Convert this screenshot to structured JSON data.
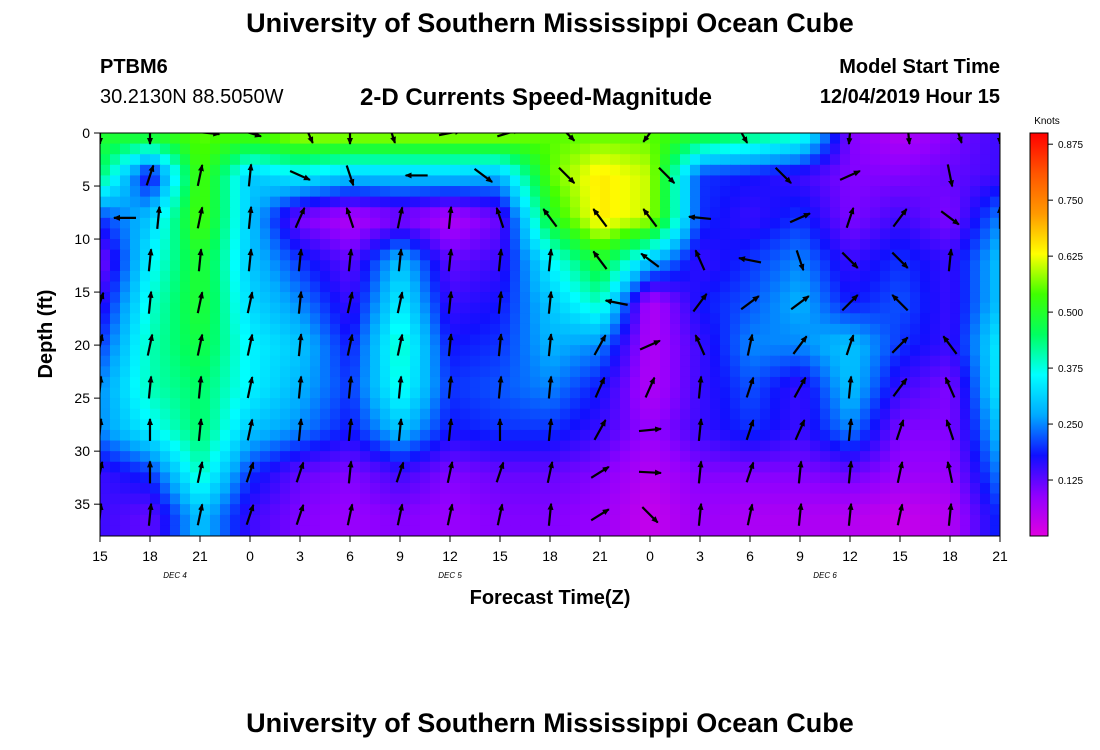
{
  "header": {
    "title": "University of Southern Mississippi Ocean Cube",
    "station_id": "PTBM6",
    "coordinates": "30.2130N 88.5050W",
    "chart_title": "2-D Currents Speed-Magnitude",
    "model_start_label": "Model Start Time",
    "model_start_value": "12/04/2019 Hour 15"
  },
  "footer": {
    "title": "University of Southern Mississippi Ocean Cube"
  },
  "chart_data": {
    "type": "heatmap",
    "title": "2-D Currents Speed-Magnitude",
    "xlabel": "Forecast Time(Z)",
    "ylabel": "Depth (ft)",
    "x_tick_labels": [
      "15",
      "18",
      "21",
      "0",
      "3",
      "6",
      "9",
      "12",
      "15",
      "18",
      "21",
      "0",
      "3",
      "6",
      "9",
      "12",
      "15",
      "18",
      "21"
    ],
    "x_hours_from_start": [
      0,
      3,
      6,
      9,
      12,
      15,
      18,
      21,
      24,
      27,
      30,
      33,
      36,
      39,
      42,
      45,
      48,
      51,
      54
    ],
    "day_labels": [
      {
        "label": "DEC 4",
        "at_hour": 4.5
      },
      {
        "label": "DEC 5",
        "at_hour": 21
      },
      {
        "label": "DEC 6",
        "at_hour": 43.5
      }
    ],
    "y_ticks": [
      0,
      5,
      10,
      15,
      20,
      25,
      30,
      35
    ],
    "ylim": [
      0,
      38
    ],
    "x_range_hours": [
      0,
      54
    ],
    "y_inverted": true,
    "colorbar": {
      "title": "Knots",
      "ticks": [
        "0.875",
        "0.750",
        "0.625",
        "0.500",
        "0.375",
        "0.250",
        "0.125"
      ],
      "tick_values": [
        0.875,
        0.75,
        0.625,
        0.5,
        0.375,
        0.25,
        0.125
      ],
      "range": [
        0,
        0.9
      ],
      "colors": [
        "#e000e0",
        "#9000ff",
        "#1010ff",
        "#00aaff",
        "#00ffff",
        "#00ff60",
        "#40ff00",
        "#ffff00",
        "#ff9900",
        "#ff5500",
        "#ff0000"
      ]
    },
    "depths": [
      0,
      4,
      8,
      12,
      16,
      20,
      24,
      28,
      32,
      36
    ],
    "hours": [
      0,
      3,
      6,
      9,
      12,
      15,
      18,
      21,
      24,
      27,
      30,
      33,
      36,
      39,
      42,
      45,
      48,
      51,
      54
    ],
    "speed_grid": [
      [
        0.5,
        0.52,
        0.55,
        0.55,
        0.6,
        0.6,
        0.6,
        0.6,
        0.6,
        0.55,
        0.55,
        0.55,
        0.5,
        0.45,
        0.4,
        0.1,
        0.05,
        0.1,
        0.15
      ],
      [
        0.45,
        0.15,
        0.55,
        0.3,
        0.35,
        0.3,
        0.3,
        0.3,
        0.28,
        0.55,
        0.65,
        0.6,
        0.2,
        0.18,
        0.15,
        0.1,
        0.1,
        0.12,
        0.15
      ],
      [
        0.2,
        0.3,
        0.55,
        0.3,
        0.1,
        0.05,
        0.1,
        0.05,
        0.12,
        0.5,
        0.65,
        0.6,
        0.2,
        0.15,
        0.2,
        0.1,
        0.15,
        0.1,
        0.25
      ],
      [
        0.1,
        0.35,
        0.5,
        0.3,
        0.2,
        0.12,
        0.3,
        0.12,
        0.15,
        0.35,
        0.5,
        0.3,
        0.15,
        0.2,
        0.25,
        0.15,
        0.2,
        0.15,
        0.3
      ],
      [
        0.15,
        0.38,
        0.5,
        0.32,
        0.25,
        0.15,
        0.35,
        0.15,
        0.18,
        0.3,
        0.4,
        0.05,
        0.18,
        0.22,
        0.28,
        0.18,
        0.22,
        0.15,
        0.3
      ],
      [
        0.2,
        0.4,
        0.48,
        0.35,
        0.3,
        0.18,
        0.4,
        0.18,
        0.2,
        0.28,
        0.25,
        0.05,
        0.15,
        0.25,
        0.25,
        0.3,
        0.2,
        0.15,
        0.35
      ],
      [
        0.25,
        0.4,
        0.45,
        0.35,
        0.28,
        0.2,
        0.38,
        0.2,
        0.22,
        0.25,
        0.18,
        0.05,
        0.15,
        0.22,
        0.15,
        0.3,
        0.15,
        0.1,
        0.35
      ],
      [
        0.25,
        0.35,
        0.45,
        0.3,
        0.25,
        0.18,
        0.3,
        0.18,
        0.2,
        0.2,
        0.15,
        0.08,
        0.15,
        0.2,
        0.15,
        0.25,
        0.1,
        0.1,
        0.3
      ],
      [
        0.15,
        0.2,
        0.4,
        0.2,
        0.12,
        0.1,
        0.15,
        0.1,
        0.12,
        0.12,
        0.1,
        0.05,
        0.1,
        0.1,
        0.1,
        0.12,
        0.08,
        0.08,
        0.25
      ],
      [
        0.15,
        0.12,
        0.3,
        0.15,
        0.1,
        0.08,
        0.1,
        0.08,
        0.1,
        0.1,
        0.08,
        0.03,
        0.08,
        0.06,
        0.06,
        0.05,
        0.03,
        0.05,
        0.2
      ]
    ],
    "vectors": [
      {
        "h": 0,
        "d": 0,
        "u": 0.0,
        "v": -1.0
      },
      {
        "h": 3,
        "d": 0,
        "u": 0.0,
        "v": -1.0
      },
      {
        "h": 6.5,
        "d": 0,
        "u": 1.0,
        "v": -0.1
      },
      {
        "h": 9,
        "d": 0,
        "u": 1.0,
        "v": -0.3
      },
      {
        "h": 12.5,
        "d": 0,
        "u": 0.4,
        "v": -0.9
      },
      {
        "h": 15,
        "d": 0,
        "u": 0.0,
        "v": -1.0
      },
      {
        "h": 17.5,
        "d": 0,
        "u": 0.3,
        "v": -0.9
      },
      {
        "h": 21,
        "d": 0,
        "u": 1.0,
        "v": 0.2
      },
      {
        "h": 24.5,
        "d": 0,
        "u": 1.0,
        "v": 0.3
      },
      {
        "h": 28,
        "d": 0,
        "u": 0.7,
        "v": -0.7
      },
      {
        "h": 33,
        "d": 0,
        "u": -0.6,
        "v": -0.8
      },
      {
        "h": 38.5,
        "d": 0,
        "u": 0.5,
        "v": -0.9
      },
      {
        "h": 45,
        "d": 0,
        "u": -0.1,
        "v": -1.0
      },
      {
        "h": 48.5,
        "d": 0,
        "u": 0.1,
        "v": -1.0
      },
      {
        "h": 51.5,
        "d": 0,
        "u": 0.3,
        "v": -0.9
      },
      {
        "h": 54,
        "d": 0,
        "u": 0.0,
        "v": -1.0
      },
      {
        "h": 3,
        "d": 4,
        "u": 0.3,
        "v": 0.9
      },
      {
        "h": 6,
        "d": 4,
        "u": 0.2,
        "v": 0.95
      },
      {
        "h": 9,
        "d": 4,
        "u": 0.1,
        "v": 1.0
      },
      {
        "h": 12,
        "d": 4,
        "u": 0.9,
        "v": -0.4
      },
      {
        "h": 15,
        "d": 4,
        "u": 0.3,
        "v": -0.9
      },
      {
        "h": 19,
        "d": 4,
        "u": -1.0,
        "v": 0.0
      },
      {
        "h": 23,
        "d": 4,
        "u": 0.8,
        "v": -0.6
      },
      {
        "h": 28,
        "d": 4,
        "u": 0.7,
        "v": -0.7
      },
      {
        "h": 34,
        "d": 4,
        "u": 0.7,
        "v": -0.7
      },
      {
        "h": 41,
        "d": 4,
        "u": 0.7,
        "v": -0.7
      },
      {
        "h": 45,
        "d": 4,
        "u": 0.9,
        "v": 0.4
      },
      {
        "h": 51,
        "d": 4,
        "u": 0.2,
        "v": -1.0
      },
      {
        "h": 1.5,
        "d": 8,
        "u": -1.0,
        "v": 0.0
      },
      {
        "h": 3.5,
        "d": 8,
        "u": 0.1,
        "v": 1.0
      },
      {
        "h": 6,
        "d": 8,
        "u": 0.2,
        "v": 0.95
      },
      {
        "h": 9,
        "d": 8,
        "u": 0.1,
        "v": 1.0
      },
      {
        "h": 12,
        "d": 8,
        "u": 0.4,
        "v": 0.9
      },
      {
        "h": 15,
        "d": 8,
        "u": -0.3,
        "v": 0.9
      },
      {
        "h": 18,
        "d": 8,
        "u": 0.2,
        "v": 0.95
      },
      {
        "h": 21,
        "d": 8,
        "u": 0.1,
        "v": 1.0
      },
      {
        "h": 24,
        "d": 8,
        "u": -0.3,
        "v": 0.9
      },
      {
        "h": 27,
        "d": 8,
        "u": -0.6,
        "v": 0.8
      },
      {
        "h": 30,
        "d": 8,
        "u": -0.6,
        "v": 0.8
      },
      {
        "h": 33,
        "d": 8,
        "u": -0.6,
        "v": 0.8
      },
      {
        "h": 36,
        "d": 8,
        "u": -1.0,
        "v": 0.1
      },
      {
        "h": 42,
        "d": 8,
        "u": 0.9,
        "v": 0.4
      },
      {
        "h": 45,
        "d": 8,
        "u": 0.3,
        "v": 0.9
      },
      {
        "h": 48,
        "d": 8,
        "u": 0.6,
        "v": 0.8
      },
      {
        "h": 51,
        "d": 8,
        "u": 0.8,
        "v": -0.6
      },
      {
        "h": 54,
        "d": 8,
        "u": 0.0,
        "v": 1.0
      },
      {
        "h": 3,
        "d": 12,
        "u": 0.1,
        "v": 1.0
      },
      {
        "h": 6,
        "d": 12,
        "u": 0.1,
        "v": 1.0
      },
      {
        "h": 9,
        "d": 12,
        "u": 0.1,
        "v": 1.0
      },
      {
        "h": 12,
        "d": 12,
        "u": 0.1,
        "v": 1.0
      },
      {
        "h": 15,
        "d": 12,
        "u": 0.1,
        "v": 1.0
      },
      {
        "h": 18,
        "d": 12,
        "u": 0.1,
        "v": 1.0
      },
      {
        "h": 21,
        "d": 12,
        "u": 0.1,
        "v": 1.0
      },
      {
        "h": 24,
        "d": 12,
        "u": 0.1,
        "v": 1.0
      },
      {
        "h": 27,
        "d": 12,
        "u": 0.1,
        "v": 1.0
      },
      {
        "h": 30,
        "d": 12,
        "u": -0.6,
        "v": 0.8
      },
      {
        "h": 33,
        "d": 12,
        "u": -0.8,
        "v": 0.6
      },
      {
        "h": 36,
        "d": 12,
        "u": -0.4,
        "v": 0.9
      },
      {
        "h": 39,
        "d": 12,
        "u": -1.0,
        "v": 0.2
      },
      {
        "h": 42,
        "d": 12,
        "u": 0.3,
        "v": -0.9
      },
      {
        "h": 45,
        "d": 12,
        "u": 0.7,
        "v": -0.7
      },
      {
        "h": 48,
        "d": 12,
        "u": 0.7,
        "v": -0.7
      },
      {
        "h": 51,
        "d": 12,
        "u": 0.1,
        "v": 1.0
      },
      {
        "h": 0,
        "d": 16,
        "u": 0.3,
        "v": 0.9
      },
      {
        "h": 3,
        "d": 16,
        "u": 0.1,
        "v": 1.0
      },
      {
        "h": 6,
        "d": 16,
        "u": 0.2,
        "v": 0.95
      },
      {
        "h": 9,
        "d": 16,
        "u": 0.2,
        "v": 0.95
      },
      {
        "h": 12,
        "d": 16,
        "u": 0.1,
        "v": 1.0
      },
      {
        "h": 15,
        "d": 16,
        "u": 0.2,
        "v": 0.95
      },
      {
        "h": 18,
        "d": 16,
        "u": 0.2,
        "v": 0.95
      },
      {
        "h": 21,
        "d": 16,
        "u": 0.1,
        "v": 1.0
      },
      {
        "h": 24,
        "d": 16,
        "u": 0.1,
        "v": 1.0
      },
      {
        "h": 27,
        "d": 16,
        "u": 0.1,
        "v": 1.0
      },
      {
        "h": 31,
        "d": 16,
        "u": -1.0,
        "v": 0.2
      },
      {
        "h": 36,
        "d": 16,
        "u": 0.6,
        "v": 0.8
      },
      {
        "h": 39,
        "d": 16,
        "u": 0.8,
        "v": 0.6
      },
      {
        "h": 42,
        "d": 16,
        "u": 0.8,
        "v": 0.6
      },
      {
        "h": 45,
        "d": 16,
        "u": 0.7,
        "v": 0.7
      },
      {
        "h": 48,
        "d": 16,
        "u": -0.7,
        "v": 0.7
      },
      {
        "h": 0,
        "d": 20,
        "u": 0.2,
        "v": 0.95
      },
      {
        "h": 3,
        "d": 20,
        "u": 0.2,
        "v": 0.95
      },
      {
        "h": 6,
        "d": 20,
        "u": 0.2,
        "v": 0.95
      },
      {
        "h": 9,
        "d": 20,
        "u": 0.2,
        "v": 0.95
      },
      {
        "h": 12,
        "d": 20,
        "u": 0.1,
        "v": 1.0
      },
      {
        "h": 15,
        "d": 20,
        "u": 0.2,
        "v": 0.95
      },
      {
        "h": 18,
        "d": 20,
        "u": 0.2,
        "v": 0.95
      },
      {
        "h": 21,
        "d": 20,
        "u": 0.1,
        "v": 1.0
      },
      {
        "h": 24,
        "d": 20,
        "u": 0.1,
        "v": 1.0
      },
      {
        "h": 27,
        "d": 20,
        "u": 0.1,
        "v": 1.0
      },
      {
        "h": 30,
        "d": 20,
        "u": 0.5,
        "v": 0.9
      },
      {
        "h": 33,
        "d": 20,
        "u": 0.9,
        "v": 0.4
      },
      {
        "h": 36,
        "d": 20,
        "u": -0.4,
        "v": 0.9
      },
      {
        "h": 39,
        "d": 20,
        "u": 0.2,
        "v": 0.95
      },
      {
        "h": 42,
        "d": 20,
        "u": 0.6,
        "v": 0.8
      },
      {
        "h": 45,
        "d": 20,
        "u": 0.3,
        "v": 0.9
      },
      {
        "h": 48,
        "d": 20,
        "u": 0.7,
        "v": 0.7
      },
      {
        "h": 51,
        "d": 20,
        "u": -0.6,
        "v": 0.8
      },
      {
        "h": 0,
        "d": 24,
        "u": 0.1,
        "v": 1.0
      },
      {
        "h": 3,
        "d": 24,
        "u": 0.1,
        "v": 1.0
      },
      {
        "h": 6,
        "d": 24,
        "u": 0.1,
        "v": 1.0
      },
      {
        "h": 9,
        "d": 24,
        "u": 0.2,
        "v": 0.95
      },
      {
        "h": 12,
        "d": 24,
        "u": 0.1,
        "v": 1.0
      },
      {
        "h": 15,
        "d": 24,
        "u": 0.1,
        "v": 1.0
      },
      {
        "h": 18,
        "d": 24,
        "u": 0.1,
        "v": 1.0
      },
      {
        "h": 21,
        "d": 24,
        "u": 0.1,
        "v": 1.0
      },
      {
        "h": 24,
        "d": 24,
        "u": 0.1,
        "v": 1.0
      },
      {
        "h": 27,
        "d": 24,
        "u": 0.1,
        "v": 1.0
      },
      {
        "h": 30,
        "d": 24,
        "u": 0.4,
        "v": 0.9
      },
      {
        "h": 33,
        "d": 24,
        "u": 0.4,
        "v": 0.9
      },
      {
        "h": 36,
        "d": 24,
        "u": 0.1,
        "v": 1.0
      },
      {
        "h": 39,
        "d": 24,
        "u": 0.3,
        "v": 0.9
      },
      {
        "h": 42,
        "d": 24,
        "u": 0.5,
        "v": 0.9
      },
      {
        "h": 45,
        "d": 24,
        "u": 0.1,
        "v": 1.0
      },
      {
        "h": 48,
        "d": 24,
        "u": 0.6,
        "v": 0.8
      },
      {
        "h": 51,
        "d": 24,
        "u": -0.4,
        "v": 0.9
      },
      {
        "h": 0,
        "d": 28,
        "u": 0.1,
        "v": 1.0
      },
      {
        "h": 3,
        "d": 28,
        "u": 0.0,
        "v": 1.0
      },
      {
        "h": 6,
        "d": 28,
        "u": 0.1,
        "v": 1.0
      },
      {
        "h": 9,
        "d": 28,
        "u": 0.2,
        "v": 0.95
      },
      {
        "h": 12,
        "d": 28,
        "u": 0.1,
        "v": 1.0
      },
      {
        "h": 15,
        "d": 28,
        "u": 0.1,
        "v": 1.0
      },
      {
        "h": 18,
        "d": 28,
        "u": 0.1,
        "v": 1.0
      },
      {
        "h": 21,
        "d": 28,
        "u": 0.1,
        "v": 1.0
      },
      {
        "h": 24,
        "d": 28,
        "u": 0.0,
        "v": 1.0
      },
      {
        "h": 27,
        "d": 28,
        "u": 0.1,
        "v": 1.0
      },
      {
        "h": 30,
        "d": 28,
        "u": 0.5,
        "v": 0.9
      },
      {
        "h": 33,
        "d": 28,
        "u": 1.0,
        "v": 0.1
      },
      {
        "h": 36,
        "d": 28,
        "u": 0.1,
        "v": 1.0
      },
      {
        "h": 39,
        "d": 28,
        "u": 0.3,
        "v": 0.9
      },
      {
        "h": 42,
        "d": 28,
        "u": 0.4,
        "v": 0.9
      },
      {
        "h": 45,
        "d": 28,
        "u": 0.1,
        "v": 1.0
      },
      {
        "h": 48,
        "d": 28,
        "u": 0.3,
        "v": 0.9
      },
      {
        "h": 51,
        "d": 28,
        "u": -0.3,
        "v": 0.9
      },
      {
        "h": 0,
        "d": 32,
        "u": 0.2,
        "v": 0.95
      },
      {
        "h": 3,
        "d": 32,
        "u": 0.0,
        "v": 1.0
      },
      {
        "h": 6,
        "d": 32,
        "u": 0.2,
        "v": 0.95
      },
      {
        "h": 9,
        "d": 32,
        "u": 0.3,
        "v": 0.9
      },
      {
        "h": 12,
        "d": 32,
        "u": 0.3,
        "v": 0.9
      },
      {
        "h": 15,
        "d": 32,
        "u": 0.1,
        "v": 1.0
      },
      {
        "h": 18,
        "d": 32,
        "u": 0.3,
        "v": 0.9
      },
      {
        "h": 21,
        "d": 32,
        "u": 0.2,
        "v": 0.95
      },
      {
        "h": 24,
        "d": 32,
        "u": 0.3,
        "v": 0.9
      },
      {
        "h": 27,
        "d": 32,
        "u": 0.2,
        "v": 0.95
      },
      {
        "h": 30,
        "d": 32,
        "u": 0.8,
        "v": 0.5
      },
      {
        "h": 33,
        "d": 32,
        "u": 1.0,
        "v": -0.05
      },
      {
        "h": 36,
        "d": 32,
        "u": 0.1,
        "v": 1.0
      },
      {
        "h": 39,
        "d": 32,
        "u": 0.3,
        "v": 0.9
      },
      {
        "h": 42,
        "d": 32,
        "u": 0.1,
        "v": 1.0
      },
      {
        "h": 45,
        "d": 32,
        "u": 0.1,
        "v": 1.0
      },
      {
        "h": 48,
        "d": 32,
        "u": 0.2,
        "v": 0.95
      },
      {
        "h": 51,
        "d": 32,
        "u": -0.2,
        "v": 0.95
      },
      {
        "h": 0,
        "d": 36,
        "u": 0.1,
        "v": 1.0
      },
      {
        "h": 3,
        "d": 36,
        "u": 0.1,
        "v": 1.0
      },
      {
        "h": 6,
        "d": 36,
        "u": 0.2,
        "v": 0.95
      },
      {
        "h": 9,
        "d": 36,
        "u": 0.3,
        "v": 0.9
      },
      {
        "h": 12,
        "d": 36,
        "u": 0.3,
        "v": 0.9
      },
      {
        "h": 15,
        "d": 36,
        "u": 0.2,
        "v": 0.95
      },
      {
        "h": 18,
        "d": 36,
        "u": 0.2,
        "v": 0.95
      },
      {
        "h": 21,
        "d": 36,
        "u": 0.2,
        "v": 0.95
      },
      {
        "h": 24,
        "d": 36,
        "u": 0.2,
        "v": 0.95
      },
      {
        "h": 27,
        "d": 36,
        "u": 0.1,
        "v": 1.0
      },
      {
        "h": 30,
        "d": 36,
        "u": 0.8,
        "v": 0.5
      },
      {
        "h": 33,
        "d": 36,
        "u": 0.7,
        "v": -0.7
      },
      {
        "h": 36,
        "d": 36,
        "u": 0.1,
        "v": 1.0
      },
      {
        "h": 39,
        "d": 36,
        "u": 0.2,
        "v": 0.95
      },
      {
        "h": 42,
        "d": 36,
        "u": 0.1,
        "v": 1.0
      },
      {
        "h": 45,
        "d": 36,
        "u": 0.1,
        "v": 1.0
      },
      {
        "h": 48,
        "d": 36,
        "u": 0.2,
        "v": 0.95
      },
      {
        "h": 51,
        "d": 36,
        "u": 0.1,
        "v": 1.0
      }
    ]
  }
}
